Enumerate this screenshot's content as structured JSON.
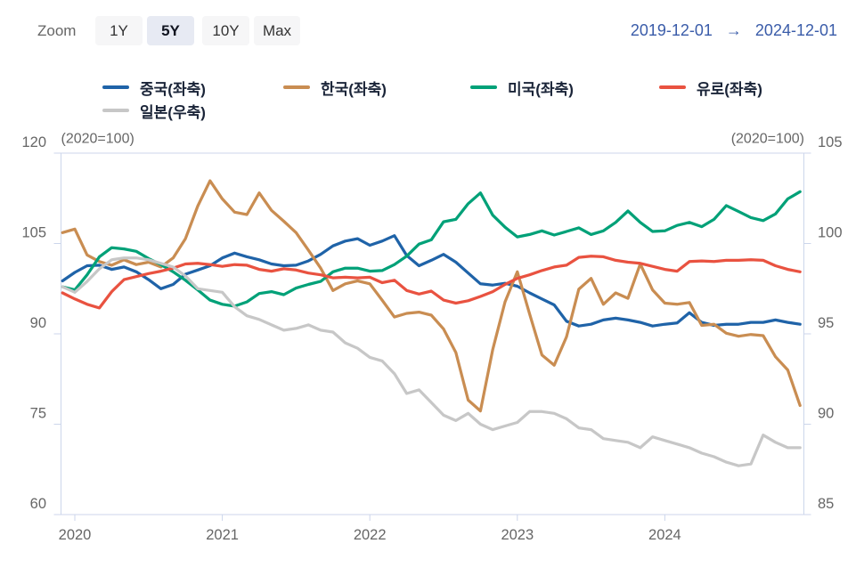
{
  "range_selector": {
    "zoom_label": "Zoom",
    "buttons": [
      {
        "label": "1Y",
        "active": false
      },
      {
        "label": "5Y",
        "active": true
      },
      {
        "label": "10Y",
        "active": false
      },
      {
        "label": "Max",
        "active": false
      }
    ],
    "from_date": "2019-12-01",
    "arrow": "→",
    "to_date": "2024-12-01"
  },
  "legend": {
    "items": [
      {
        "label": "중국(좌축)",
        "color": "#1f63a8"
      },
      {
        "label": "한국(좌축)",
        "color": "#c98d52"
      },
      {
        "label": "미국(좌축)",
        "color": "#00a178"
      },
      {
        "label": "유로(좌축)",
        "color": "#e95240"
      },
      {
        "label": "일본(우축)",
        "color": "#c7c7c7"
      }
    ]
  },
  "colors": {
    "axis_line": "#ccd6eb",
    "axis_text": "#666666",
    "date_text": "#3a5ca9",
    "legend_text": "#1a2438",
    "active_button_bg": "#e7eaf3"
  },
  "chart_data": {
    "type": "line",
    "x_start": "2019-12",
    "x_end": "2024-12",
    "x_frequency": "monthly",
    "x_axis": {
      "tick_labels": [
        "2020",
        "2021",
        "2022",
        "2023",
        "2024"
      ]
    },
    "left_axis": {
      "unit_label": "(2020=100)",
      "min": 60,
      "max": 120,
      "ticks": [
        120,
        105,
        90,
        75,
        60
      ]
    },
    "right_axis": {
      "unit_label": "(2020=100)",
      "min": 85,
      "max": 105,
      "ticks": [
        105,
        100,
        95,
        90,
        85
      ]
    },
    "grid": false,
    "series": [
      {
        "name": "중국(좌축)",
        "axis": "left",
        "color": "#1f63a8",
        "values": [
          98.8,
          100.2,
          101.3,
          101.4,
          100.7,
          101.1,
          100.3,
          99.0,
          97.5,
          98.2,
          99.9,
          100.6,
          101.3,
          102.6,
          103.4,
          102.8,
          102.3,
          101.6,
          101.3,
          101.4,
          102.1,
          103.2,
          104.6,
          105.4,
          105.8,
          104.7,
          105.4,
          106.3,
          103.0,
          101.3,
          102.2,
          103.2,
          101.9,
          100.1,
          98.3,
          98.1,
          98.4,
          97.9,
          96.8,
          95.8,
          94.8,
          92.1,
          91.3,
          91.6,
          92.3,
          92.6,
          92.3,
          91.9,
          91.3,
          91.6,
          91.8,
          93.5,
          91.9,
          91.4,
          91.6,
          91.6,
          91.9,
          91.9,
          92.3,
          91.9,
          91.6
        ]
      },
      {
        "name": "한국(좌축)",
        "axis": "left",
        "color": "#c98d52",
        "values": [
          106.8,
          107.4,
          103.1,
          102.0,
          101.4,
          102.3,
          101.5,
          101.9,
          101.1,
          102.6,
          105.8,
          111.2,
          115.4,
          112.4,
          110.2,
          109.8,
          113.4,
          110.5,
          108.7,
          106.8,
          103.9,
          100.9,
          97.2,
          98.3,
          98.8,
          98.3,
          95.6,
          92.8,
          93.4,
          93.6,
          93.1,
          90.8,
          86.9,
          79.0,
          77.2,
          87.4,
          95.3,
          100.3,
          93.3,
          86.5,
          84.8,
          89.5,
          97.4,
          99.2,
          94.9,
          96.8,
          95.9,
          101.6,
          97.3,
          95.1,
          94.9,
          95.2,
          91.4,
          91.6,
          90.1,
          89.6,
          89.9,
          89.7,
          86.2,
          84.0,
          78.1
        ]
      },
      {
        "name": "미국(좌축)",
        "axis": "left",
        "color": "#00a178",
        "values": [
          97.8,
          97.3,
          99.8,
          102.8,
          104.3,
          104.1,
          103.7,
          102.5,
          101.5,
          100.3,
          98.9,
          97.3,
          95.6,
          94.9,
          94.6,
          95.3,
          96.7,
          97.0,
          96.5,
          97.6,
          98.2,
          98.7,
          100.3,
          100.9,
          100.9,
          100.4,
          100.5,
          101.5,
          102.9,
          104.9,
          105.6,
          108.6,
          109.0,
          111.6,
          113.4,
          109.7,
          107.7,
          106.1,
          106.5,
          107.1,
          106.4,
          107.0,
          107.6,
          106.5,
          107.1,
          108.5,
          110.4,
          108.5,
          107.0,
          107.1,
          108.0,
          108.5,
          107.8,
          109.0,
          111.3,
          110.3,
          109.3,
          108.8,
          109.9,
          112.4,
          113.6
        ]
      },
      {
        "name": "유로(좌축)",
        "axis": "left",
        "color": "#e95240",
        "values": [
          96.8,
          95.8,
          94.9,
          94.3,
          97.0,
          99.0,
          99.5,
          100.0,
          100.4,
          100.9,
          101.6,
          101.7,
          101.5,
          101.2,
          101.5,
          101.4,
          100.7,
          100.4,
          100.8,
          100.6,
          100.1,
          99.8,
          99.3,
          99.4,
          99.3,
          99.4,
          98.5,
          98.9,
          97.2,
          96.6,
          97.1,
          95.6,
          95.1,
          95.5,
          96.2,
          97.0,
          98.2,
          99.2,
          99.8,
          100.5,
          101.1,
          101.4,
          102.7,
          102.9,
          102.8,
          102.2,
          101.9,
          101.7,
          101.2,
          100.7,
          100.4,
          102.0,
          102.1,
          102.0,
          102.2,
          102.2,
          102.3,
          102.2,
          101.3,
          100.7,
          100.3
        ]
      },
      {
        "name": "일본(우축)",
        "axis": "right",
        "color": "#c7c7c7",
        "values": [
          97.6,
          97.3,
          97.9,
          98.6,
          99.1,
          99.2,
          99.2,
          99.1,
          98.9,
          98.7,
          98.2,
          97.5,
          97.4,
          97.3,
          96.5,
          96.0,
          95.8,
          95.5,
          95.2,
          95.3,
          95.5,
          95.2,
          95.1,
          94.5,
          94.2,
          93.7,
          93.5,
          92.8,
          91.7,
          91.9,
          91.2,
          90.5,
          90.2,
          90.6,
          90.0,
          89.7,
          89.9,
          90.1,
          90.7,
          90.7,
          90.6,
          90.3,
          89.8,
          89.7,
          89.2,
          89.1,
          89.0,
          88.7,
          89.3,
          89.1,
          88.9,
          88.7,
          88.4,
          88.2,
          87.9,
          87.7,
          87.8,
          89.4,
          89.0,
          88.7,
          88.7
        ]
      }
    ]
  }
}
